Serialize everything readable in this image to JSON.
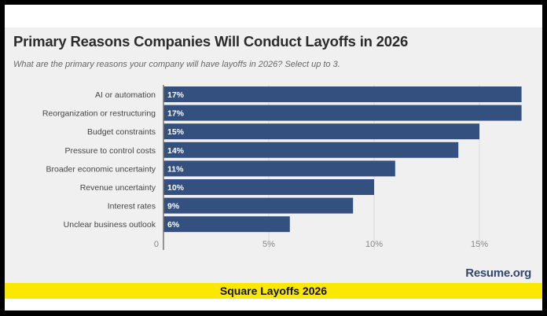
{
  "chart_data": {
    "type": "bar",
    "orientation": "horizontal",
    "title": "Primary Reasons Companies Will Conduct Layoffs in 2026",
    "subtitle": "What are the primary reasons your company will have layoffs in 2026? Select up to 3.",
    "categories": [
      "AI or automation",
      "Reorganization or restructuring",
      "Budget constraints",
      "Pressure to control costs",
      "Broader economic uncertainty",
      "Revenue uncertainty",
      "Interest rates",
      "Unclear business outlook"
    ],
    "values": [
      17,
      17,
      15,
      14,
      11,
      10,
      9,
      6
    ],
    "data_labels": [
      "17%",
      "17%",
      "15%",
      "14%",
      "11%",
      "10%",
      "9%",
      "6%"
    ],
    "xlim": [
      0,
      17.5
    ],
    "xticks": [
      0,
      5,
      10,
      15
    ],
    "xtick_labels": [
      "0",
      "5%",
      "10%",
      "15%"
    ],
    "grid": true,
    "bar_color": "#33507f"
  },
  "source": "Resume.org",
  "caption": "Square Layoffs 2026"
}
